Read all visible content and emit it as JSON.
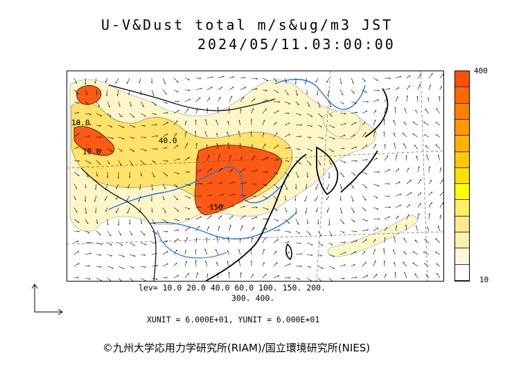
{
  "title": {
    "line1": "U-V&Dust total m/s&ug/m3 JST",
    "line2": "2024/05/11.03:00:00"
  },
  "colorbar": {
    "max_label": "400",
    "min_label": "10",
    "colors": [
      "#ffffff",
      "#fff8d8",
      "#fff0b0",
      "#ffe890",
      "#fff060",
      "#ffff00",
      "#ffe000",
      "#ffc800",
      "#ffb000",
      "#ff9800",
      "#ff8000",
      "#ff6800",
      "#ff5000"
    ]
  },
  "legend": {
    "levels_line1": "lev= 10.0 20.0 40.0 60.0 100. 150. 200.",
    "levels_line2": "300. 400."
  },
  "units": "XUNIT = 6.000E+01, YUNIT = 6.000E+01",
  "credit": "©九州大学応用力学研究所(RIAM)/国立環境研究所(NIES)",
  "contour_labels": [
    "10.0",
    "40.0",
    "10.0",
    "150"
  ],
  "colors": {
    "dust_low": "#fdf6c8",
    "dust_mid": "#ffe26a",
    "dust_high": "#ff5a14",
    "rivers": "#1e6fff",
    "coast": "#000000"
  }
}
